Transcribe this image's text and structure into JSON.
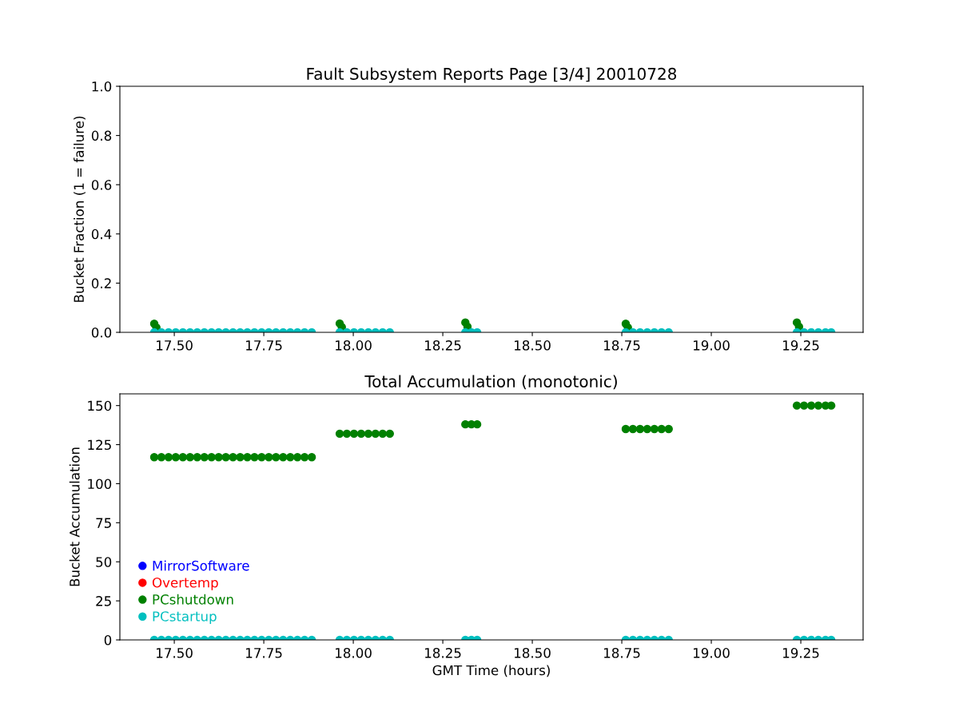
{
  "chart_data": [
    {
      "type": "scatter",
      "title": "Fault Subsystem Reports Page [3/4] 20010728",
      "ylabel": "Bucket Fraction (1 = failure)",
      "xlim": [
        17.348,
        19.424
      ],
      "xticks": [
        {
          "value": 17.5,
          "label": "17.50"
        },
        {
          "value": 17.75,
          "label": "17.75"
        },
        {
          "value": 18.0,
          "label": "18.00"
        },
        {
          "value": 18.25,
          "label": "18.25"
        },
        {
          "value": 18.5,
          "label": "18.50"
        },
        {
          "value": 18.75,
          "label": "18.75"
        },
        {
          "value": 19.0,
          "label": "19.00"
        },
        {
          "value": 19.25,
          "label": "19.25"
        }
      ],
      "ylim": [
        0,
        1
      ],
      "yticks": [
        {
          "value": 0,
          "label": "0.0"
        },
        {
          "value": 0.2,
          "label": "0.2"
        },
        {
          "value": 0.4,
          "label": "0.4"
        },
        {
          "value": 0.6,
          "label": "0.6"
        },
        {
          "value": 0.8,
          "label": "0.8"
        },
        {
          "value": 1,
          "label": "1.0"
        }
      ],
      "marker": "circle",
      "grid": false,
      "legend": false,
      "series": [
        {
          "color": "#008000",
          "x": [
            17.444,
            17.45,
            17.962,
            17.968,
            18.313,
            18.319,
            18.761,
            18.767,
            19.239,
            19.245
          ],
          "values": [
            0.035,
            0.02,
            0.036,
            0.021,
            0.04,
            0.023,
            0.035,
            0.02,
            0.04,
            0.023
          ]
        },
        {
          "color": "#00bfbf",
          "x": [
            17.444,
            17.464,
            17.484,
            17.504,
            17.524,
            17.544,
            17.564,
            17.584,
            17.604,
            17.624,
            17.644,
            17.664,
            17.684,
            17.704,
            17.724,
            17.744,
            17.764,
            17.784,
            17.804,
            17.824,
            17.844,
            17.864,
            17.884,
            17.962,
            17.982,
            18.002,
            18.022,
            18.042,
            18.062,
            18.082,
            18.102,
            18.313,
            18.33,
            18.346,
            18.761,
            18.781,
            18.801,
            18.821,
            18.841,
            18.861,
            18.881,
            19.239,
            19.259,
            19.279,
            19.299,
            19.319,
            19.335
          ],
          "values": [
            0,
            0,
            0,
            0,
            0,
            0,
            0,
            0,
            0,
            0,
            0,
            0,
            0,
            0,
            0,
            0,
            0,
            0,
            0,
            0,
            0,
            0,
            0,
            0,
            0,
            0,
            0,
            0,
            0,
            0,
            0,
            0,
            0,
            0,
            0,
            0,
            0,
            0,
            0,
            0,
            0,
            0,
            0,
            0,
            0,
            0,
            0
          ]
        }
      ]
    },
    {
      "type": "scatter",
      "title": "Total Accumulation (monotonic)",
      "xlabel": "GMT Time (hours)",
      "ylabel": "Bucket Accumulation",
      "xlim": [
        17.348,
        19.424
      ],
      "xticks": [
        {
          "value": 17.5,
          "label": "17.50"
        },
        {
          "value": 17.75,
          "label": "17.75"
        },
        {
          "value": 18.0,
          "label": "18.00"
        },
        {
          "value": 18.25,
          "label": "18.25"
        },
        {
          "value": 18.5,
          "label": "18.50"
        },
        {
          "value": 18.75,
          "label": "18.75"
        },
        {
          "value": 19.0,
          "label": "19.00"
        },
        {
          "value": 19.25,
          "label": "19.25"
        }
      ],
      "ylim": [
        0,
        157.5
      ],
      "yticks": [
        0,
        25,
        50,
        75,
        100,
        125,
        150
      ],
      "marker": "circle",
      "grid": false,
      "legend": "bottom left",
      "series": [
        {
          "name": "MirrorSoftware",
          "color": "#0000ff"
        },
        {
          "name": "Overtemp",
          "color": "#ff0000"
        },
        {
          "name": "PCshutdown",
          "color": "#008000",
          "x": [
            17.444,
            17.464,
            17.484,
            17.504,
            17.524,
            17.544,
            17.564,
            17.584,
            17.604,
            17.624,
            17.644,
            17.664,
            17.684,
            17.704,
            17.724,
            17.744,
            17.764,
            17.784,
            17.804,
            17.824,
            17.844,
            17.864,
            17.884,
            17.962,
            17.982,
            18.002,
            18.022,
            18.042,
            18.062,
            18.082,
            18.102,
            18.313,
            18.33,
            18.346,
            18.761,
            18.781,
            18.801,
            18.821,
            18.841,
            18.861,
            18.881,
            19.239,
            19.259,
            19.279,
            19.299,
            19.319,
            19.335
          ],
          "values": [
            117,
            117,
            117,
            117,
            117,
            117,
            117,
            117,
            117,
            117,
            117,
            117,
            117,
            117,
            117,
            117,
            117,
            117,
            117,
            117,
            117,
            117,
            117,
            132,
            132,
            132,
            132,
            132,
            132,
            132,
            132,
            138,
            138,
            138,
            135,
            135,
            135,
            135,
            135,
            135,
            135,
            150,
            150,
            150,
            150,
            150,
            150
          ]
        },
        {
          "name": "PCstartup",
          "color": "#00bfbf",
          "x": [
            17.444,
            17.464,
            17.484,
            17.504,
            17.524,
            17.544,
            17.564,
            17.584,
            17.604,
            17.624,
            17.644,
            17.664,
            17.684,
            17.704,
            17.724,
            17.744,
            17.764,
            17.784,
            17.804,
            17.824,
            17.844,
            17.864,
            17.884,
            17.962,
            17.982,
            18.002,
            18.022,
            18.042,
            18.062,
            18.082,
            18.102,
            18.313,
            18.33,
            18.346,
            18.761,
            18.781,
            18.801,
            18.821,
            18.841,
            18.861,
            18.881,
            19.239,
            19.259,
            19.279,
            19.299,
            19.319,
            19.335
          ],
          "values": [
            0,
            0,
            0,
            0,
            0,
            0,
            0,
            0,
            0,
            0,
            0,
            0,
            0,
            0,
            0,
            0,
            0,
            0,
            0,
            0,
            0,
            0,
            0,
            0,
            0,
            0,
            0,
            0,
            0,
            0,
            0,
            0,
            0,
            0,
            0,
            0,
            0,
            0,
            0,
            0,
            0,
            0,
            0,
            0,
            0,
            0,
            0
          ]
        }
      ]
    }
  ]
}
